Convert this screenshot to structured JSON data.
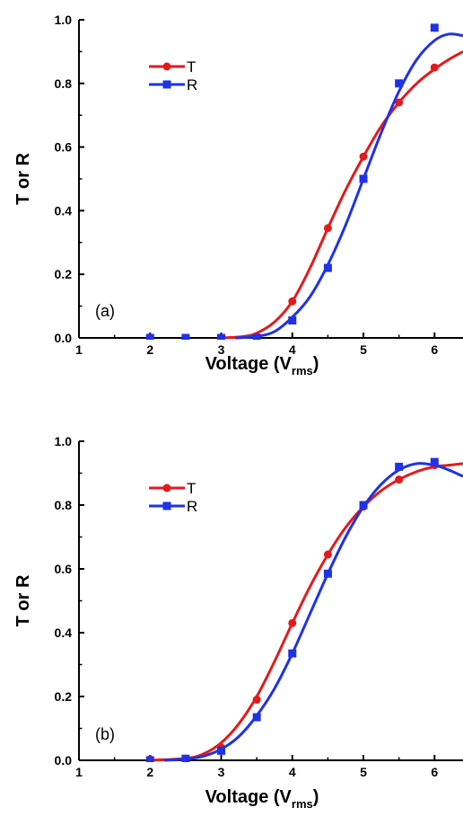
{
  "chart_data": [
    {
      "type": "scatter",
      "panel_label": "(a)",
      "xlabel": "Voltage (V",
      "xlabel_sub": "rms",
      "xlabel_close": ")",
      "ylabel": "T or R",
      "xlim": [
        1,
        6.4
      ],
      "ylim": [
        0,
        1.0
      ],
      "xticks": [
        "1",
        "2",
        "3",
        "4",
        "5",
        "6"
      ],
      "yticks": [
        "0.0",
        "0.2",
        "0.4",
        "0.6",
        "0.8",
        "1.0"
      ],
      "legend_position": "upper-left",
      "series": [
        {
          "name": "T",
          "color": "#e31a1c",
          "marker": "circle",
          "x": [
            2,
            2.5,
            3,
            3.5,
            4,
            4.5,
            5,
            5.5,
            6
          ],
          "y": [
            0.0,
            0.0,
            0.0,
            0.005,
            0.115,
            0.345,
            0.57,
            0.74,
            0.85
          ],
          "fit": [
            [
              3.0,
              0.0
            ],
            [
              3.3,
              0.004
            ],
            [
              3.5,
              0.015
            ],
            [
              3.75,
              0.05
            ],
            [
              4.0,
              0.115
            ],
            [
              4.25,
              0.22
            ],
            [
              4.5,
              0.345
            ],
            [
              4.75,
              0.465
            ],
            [
              5.0,
              0.57
            ],
            [
              5.25,
              0.665
            ],
            [
              5.5,
              0.74
            ],
            [
              5.75,
              0.8
            ],
            [
              6.0,
              0.845
            ],
            [
              6.2,
              0.875
            ],
            [
              6.4,
              0.9
            ]
          ]
        },
        {
          "name": "R",
          "color": "#1f32e6",
          "marker": "square",
          "x": [
            2,
            2.5,
            3,
            3.5,
            4,
            4.5,
            5,
            5.5,
            6
          ],
          "y": [
            0.0,
            0.0,
            0.0,
            0.0,
            0.055,
            0.22,
            0.5,
            0.8,
            0.975
          ],
          "fit": [
            [
              3.2,
              0.0
            ],
            [
              3.5,
              0.005
            ],
            [
              3.75,
              0.02
            ],
            [
              4.0,
              0.065
            ],
            [
              4.25,
              0.13
            ],
            [
              4.5,
              0.23
            ],
            [
              4.75,
              0.355
            ],
            [
              5.0,
              0.5
            ],
            [
              5.25,
              0.645
            ],
            [
              5.5,
              0.775
            ],
            [
              5.75,
              0.875
            ],
            [
              6.0,
              0.935
            ],
            [
              6.2,
              0.955
            ],
            [
              6.4,
              0.95
            ]
          ]
        }
      ]
    },
    {
      "type": "scatter",
      "panel_label": "(b)",
      "xlabel": "Voltage (V",
      "xlabel_sub": "rms",
      "xlabel_close": ")",
      "ylabel": "T or R",
      "xlim": [
        1,
        6.4
      ],
      "ylim": [
        0,
        1.0
      ],
      "xticks": [
        "1",
        "2",
        "3",
        "4",
        "5",
        "6"
      ],
      "yticks": [
        "0.0",
        "0.2",
        "0.4",
        "0.6",
        "0.8",
        "1.0"
      ],
      "legend_position": "upper-left",
      "series": [
        {
          "name": "T",
          "color": "#e31a1c",
          "marker": "circle",
          "x": [
            2,
            2.5,
            3,
            3.5,
            4,
            4.5,
            5,
            5.5,
            6
          ],
          "y": [
            0.003,
            0.005,
            0.04,
            0.19,
            0.43,
            0.645,
            0.795,
            0.88,
            0.925
          ],
          "fit": [
            [
              2.0,
              0.0
            ],
            [
              2.5,
              0.006
            ],
            [
              2.75,
              0.02
            ],
            [
              3.0,
              0.055
            ],
            [
              3.25,
              0.115
            ],
            [
              3.5,
              0.2
            ],
            [
              3.75,
              0.31
            ],
            [
              4.0,
              0.43
            ],
            [
              4.25,
              0.545
            ],
            [
              4.5,
              0.645
            ],
            [
              4.75,
              0.73
            ],
            [
              5.0,
              0.795
            ],
            [
              5.25,
              0.845
            ],
            [
              5.5,
              0.88
            ],
            [
              5.75,
              0.905
            ],
            [
              6.0,
              0.92
            ],
            [
              6.2,
              0.925
            ],
            [
              6.4,
              0.93
            ]
          ]
        },
        {
          "name": "R",
          "color": "#1f32e6",
          "marker": "square",
          "x": [
            2,
            2.5,
            3,
            3.5,
            4,
            4.5,
            5,
            5.5,
            6
          ],
          "y": [
            0.0,
            0.005,
            0.03,
            0.135,
            0.335,
            0.585,
            0.8,
            0.92,
            0.935
          ],
          "fit": [
            [
              2.2,
              0.0
            ],
            [
              2.5,
              0.004
            ],
            [
              2.75,
              0.013
            ],
            [
              3.0,
              0.035
            ],
            [
              3.25,
              0.075
            ],
            [
              3.5,
              0.14
            ],
            [
              3.75,
              0.225
            ],
            [
              4.0,
              0.335
            ],
            [
              4.25,
              0.46
            ],
            [
              4.5,
              0.585
            ],
            [
              4.75,
              0.7
            ],
            [
              5.0,
              0.795
            ],
            [
              5.25,
              0.865
            ],
            [
              5.5,
              0.91
            ],
            [
              5.75,
              0.93
            ],
            [
              6.0,
              0.925
            ],
            [
              6.2,
              0.91
            ],
            [
              6.4,
              0.89
            ]
          ]
        }
      ]
    }
  ]
}
